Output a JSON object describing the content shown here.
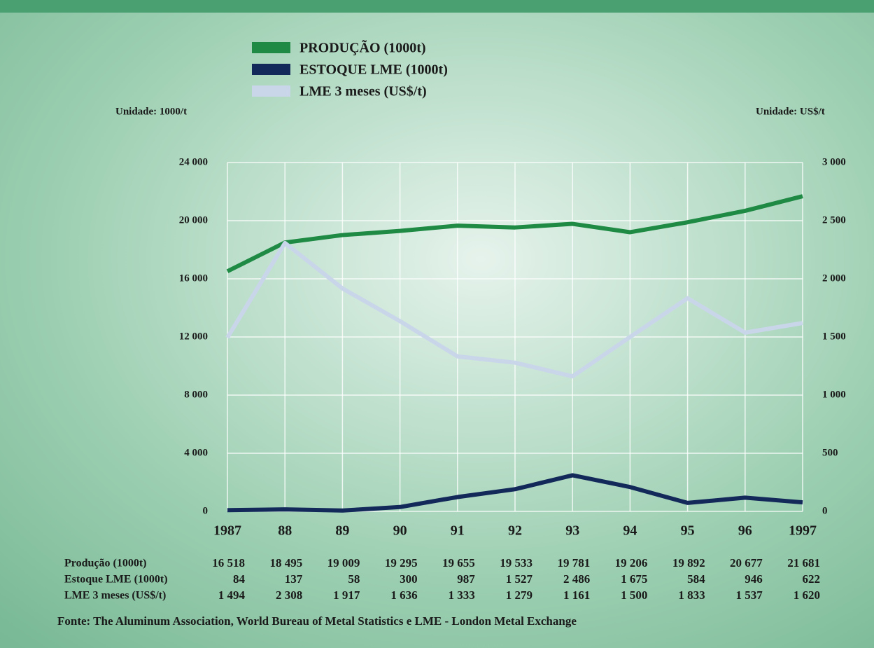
{
  "chart_data": {
    "type": "line",
    "y_unit_label": "Unidade: 1000/t",
    "y2_unit_label": "Unidade: US$/t",
    "categories": [
      "1987",
      "88",
      "89",
      "90",
      "91",
      "92",
      "93",
      "94",
      "95",
      "96",
      "1997"
    ],
    "series": [
      {
        "name": "PRODUÇÃO (1000t)",
        "table_label": "Produção (1000t)",
        "color": "#1e8a44",
        "axis": "y",
        "values": [
          16518,
          18495,
          19009,
          19295,
          19655,
          19533,
          19781,
          19206,
          19892,
          20677,
          21681
        ],
        "value_labels": [
          "16 518",
          "18 495",
          "19 009",
          "19 295",
          "19 655",
          "19 533",
          "19 781",
          "19 206",
          "19 892",
          "20 677",
          "21 681"
        ]
      },
      {
        "name": "ESTOQUE  LME (1000t)",
        "table_label": "Estoque LME (1000t)",
        "color": "#13295a",
        "axis": "y",
        "values": [
          84,
          137,
          58,
          300,
          987,
          1527,
          2486,
          1675,
          584,
          946,
          622
        ],
        "value_labels": [
          "84",
          "137",
          "58",
          "300",
          "987",
          "1 527",
          "2 486",
          "1 675",
          "584",
          "946",
          "622"
        ]
      },
      {
        "name": "LME 3 meses (US$/t)",
        "table_label": "LME 3 meses (US$/t)",
        "color": "#c9d6ea",
        "axis": "y2",
        "values": [
          1494,
          2308,
          1917,
          1636,
          1333,
          1279,
          1161,
          1500,
          1833,
          1537,
          1620
        ],
        "value_labels": [
          "1 494",
          "2 308",
          "1 917",
          "1 636",
          "1 333",
          "1 279",
          "1 161",
          "1 500",
          "1 833",
          "1 537",
          "1 620"
        ]
      }
    ],
    "ylim": [
      0,
      24000
    ],
    "yticks": [
      0,
      {
        "value": 4000,
        "label": "4 000"
      },
      {
        "value": 8000,
        "label": "8 000"
      },
      {
        "value": 12000,
        "label": "12 000"
      },
      {
        "value": 16000,
        "label": "16 000"
      },
      {
        "value": 20000,
        "label": "20 000"
      },
      {
        "value": 24000,
        "label": "24 000"
      }
    ],
    "y2lim": [
      0,
      3000
    ],
    "y2ticks": [
      0,
      500,
      {
        "value": 1000,
        "label": "1 000"
      },
      {
        "value": 1500,
        "label": "1 500"
      },
      {
        "value": 2000,
        "label": "2 000"
      },
      {
        "value": 2500,
        "label": "2 500"
      },
      {
        "value": 3000,
        "label": "3 000"
      }
    ],
    "grid": true,
    "source": "Fonte: The Aluminum Association, World Bureau of Metal Statistics e LME - London Metal Exchange"
  }
}
